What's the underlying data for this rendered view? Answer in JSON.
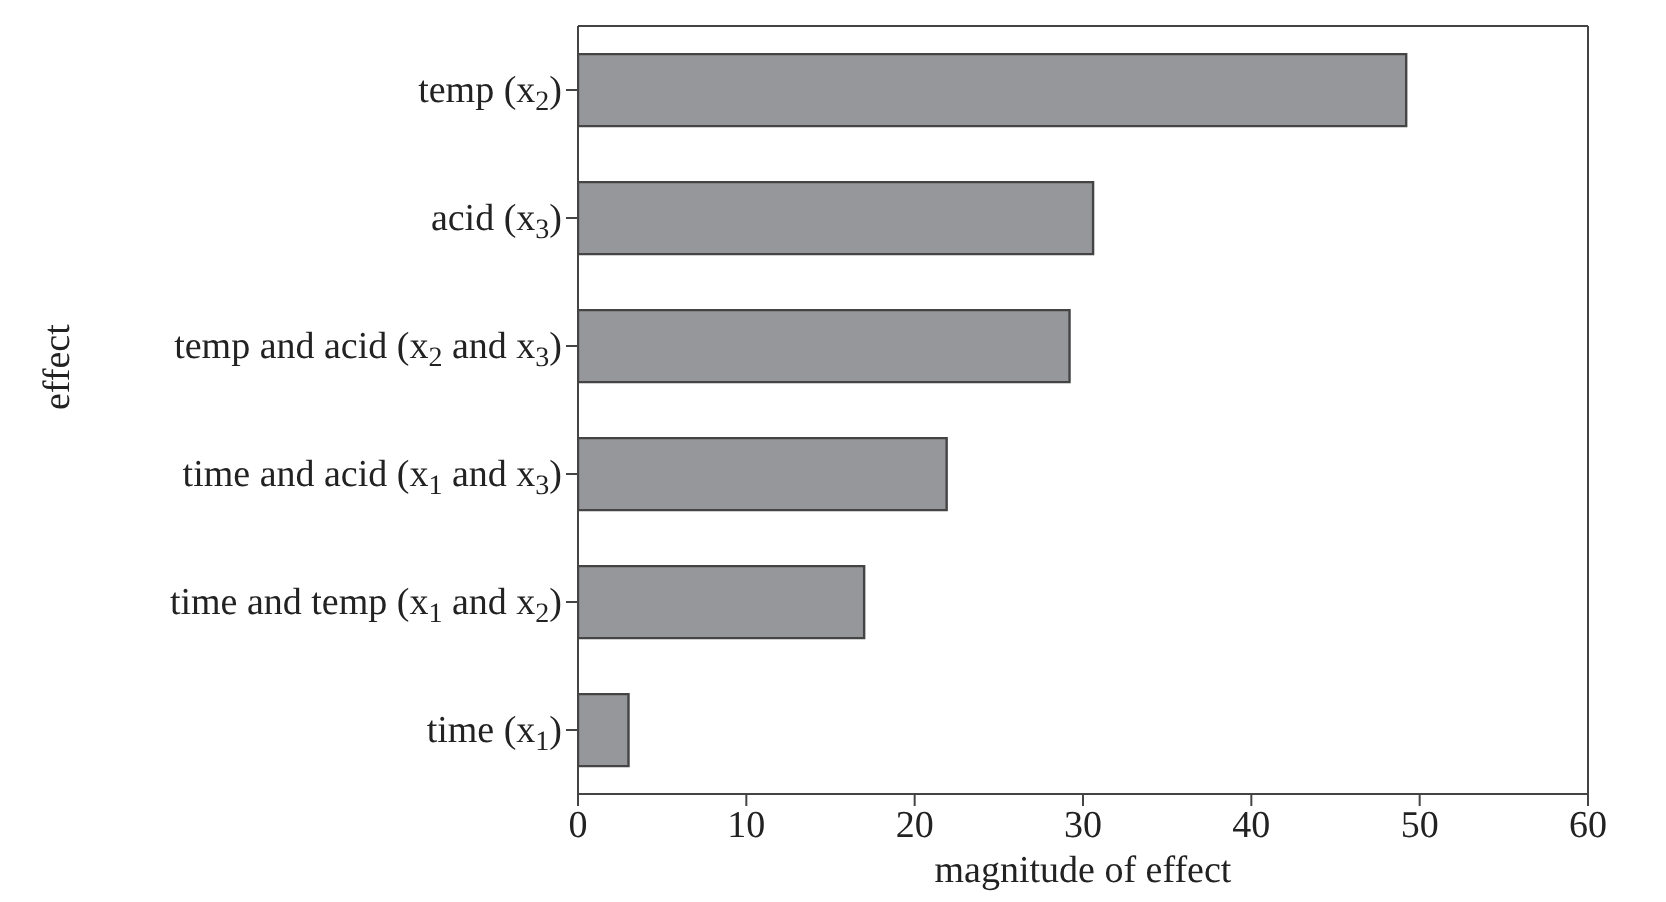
{
  "chart_data": {
    "type": "bar",
    "orientation": "horizontal",
    "xlabel": "magnitude of effect",
    "ylabel": "effect",
    "categories": [
      "temp (x$_{2}$)",
      "acid (x$_{3}$)",
      "temp and acid (x$_{2}$ and x$_{3}$)",
      "time and acid (x$_{1}$ and x$_{3}$)",
      "time and temp (x$_{1}$ and x$_{2}$)",
      "time (x$_{1}$)"
    ],
    "values": [
      49.2,
      30.6,
      29.2,
      21.9,
      17.0,
      3.0
    ],
    "color": "#96979b",
    "xlim": [
      0,
      60
    ],
    "xticks": [
      0,
      10,
      20,
      30,
      40,
      50,
      60
    ],
    "grid": false,
    "legend": false
  }
}
